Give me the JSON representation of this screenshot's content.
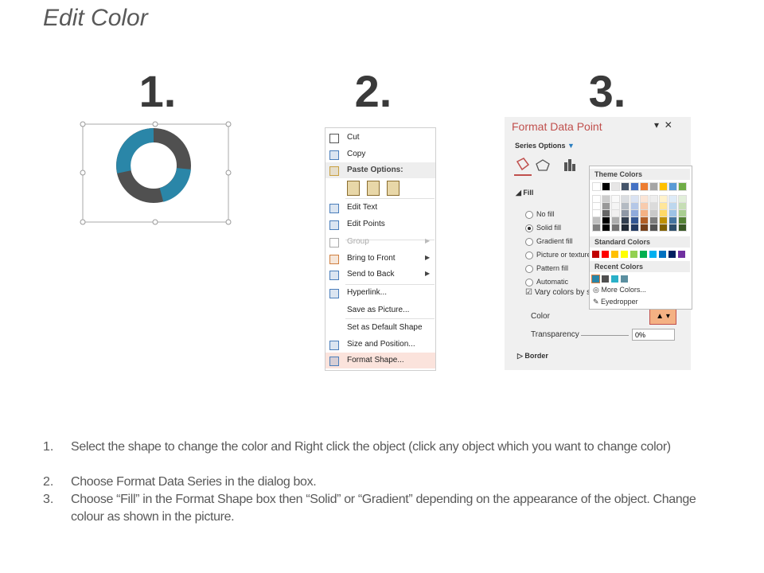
{
  "title": "Edit Color",
  "steps": [
    "1.",
    "2.",
    "3."
  ],
  "context_menu": {
    "items": [
      {
        "label": "Cut"
      },
      {
        "label": "Copy"
      },
      {
        "label": "Paste Options:",
        "header": true
      },
      {
        "label": "Edit Text"
      },
      {
        "label": "Edit Points"
      },
      {
        "label": "Group",
        "disabled": true,
        "submenu": true
      },
      {
        "label": "Bring to Front",
        "submenu": true
      },
      {
        "label": "Send to Back",
        "submenu": true
      },
      {
        "label": "Hyperlink..."
      },
      {
        "label": "Save as Picture..."
      },
      {
        "label": "Set as Default Shape"
      },
      {
        "label": "Size and Position..."
      },
      {
        "label": "Format Shape...",
        "highlighted": true
      }
    ]
  },
  "format_pane": {
    "title": "Format Data Point",
    "section": "Series Options",
    "fill_header": "Fill",
    "options": [
      {
        "label": "No fill"
      },
      {
        "label": "Solid fill",
        "selected": true
      },
      {
        "label": "Gradient fill"
      },
      {
        "label": "Picture or texture"
      },
      {
        "label": "Pattern fill"
      },
      {
        "label": "Automatic"
      }
    ],
    "vary_colors": "Vary colors by sl",
    "color_label": "Color",
    "transparency_label": "Transparency",
    "transparency_value": "0%",
    "border": "Border",
    "palette": {
      "theme": "Theme Colors",
      "standard": "Standard Colors",
      "recent": "Recent Colors",
      "more": "More Colors...",
      "eyedropper": "Eyedropper"
    }
  },
  "instructions": [
    {
      "number": "1.",
      "text": "Select the shape to change the color and Right click the object (click any object which you want to change color)"
    },
    {
      "number": "2.",
      "text": "Choose Format Data Series in the dialog box."
    },
    {
      "number": "3.",
      "text": "Choose “Fill” in the Format Shape box then “Solid” or “Gradient” depending on the appearance of the object. Change colour as shown in the picture."
    }
  ]
}
